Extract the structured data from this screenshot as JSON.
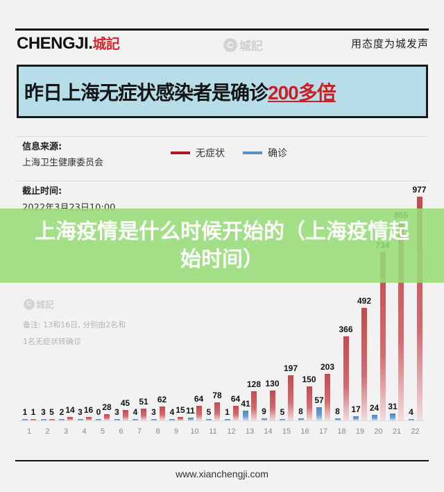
{
  "header": {
    "logo_latin": "CHENGJI.",
    "logo_cn": "城記",
    "watermark_icon": "C",
    "watermark_text": "城記",
    "slogan": "用态度为城发声"
  },
  "headline": {
    "text_main": "昨日上海无症状感染者是确诊",
    "text_highlight": "200多倍"
  },
  "meta": {
    "source_label": "信息来源:",
    "source_value": "上海卫生健康委员会",
    "cutoff_label": "截止时间:",
    "cutoff_value": "2022年3月23日10:00"
  },
  "legend": {
    "asymptomatic": "无症状",
    "confirmed": "确诊"
  },
  "note": {
    "watermark_icon": "C",
    "watermark_text": "城記",
    "line1": "备注: 13和16日, 分别由2名和",
    "line2": "1名无症状转确诊"
  },
  "banner": {
    "text": "上海疫情是什么时候开始的（上海疫情起始时间）"
  },
  "footer": {
    "url": "www.xianchengji.com"
  },
  "colors": {
    "asymptomatic": "#c0262d",
    "confirmed": "#5b8fc9",
    "headline_bg": "#b6dde8",
    "highlight": "#c81f25",
    "banner": "#96dc78"
  },
  "chart_data": {
    "type": "bar",
    "title": "昨日上海无症状感染者是确诊200多倍",
    "xlabel": "",
    "ylabel": "",
    "categories": [
      "1",
      "2",
      "3",
      "4",
      "5",
      "6",
      "7",
      "8",
      "9",
      "10",
      "11",
      "12",
      "13",
      "14",
      "15",
      "16",
      "17",
      "18",
      "19",
      "20",
      "21",
      "22"
    ],
    "series": [
      {
        "name": "确诊",
        "color": "#5b8fc9",
        "values": [
          1,
          3,
          2,
          3,
          0,
          3,
          4,
          3,
          4,
          11,
          5,
          1,
          41,
          9,
          5,
          8,
          57,
          8,
          17,
          24,
          31,
          4
        ]
      },
      {
        "name": "无症状",
        "color": "#c0262d",
        "values": [
          1,
          5,
          14,
          16,
          28,
          45,
          51,
          62,
          15,
          64,
          78,
          64,
          128,
          130,
          197,
          150,
          203,
          366,
          492,
          734,
          865,
          977
        ]
      }
    ],
    "ylim": [
      0,
      1000
    ],
    "grid": false,
    "legend_position": "top",
    "annotations": [
      "备注: 13和16日, 分别由2名和1名无症状转确诊"
    ]
  }
}
